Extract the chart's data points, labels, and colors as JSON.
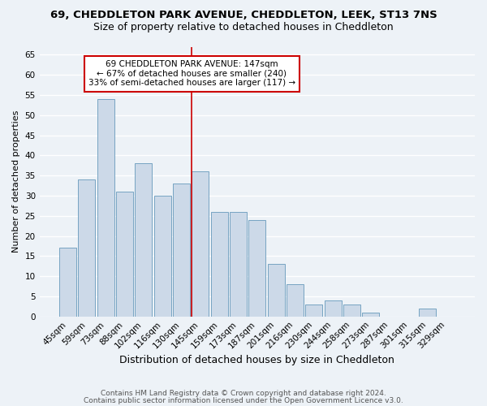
{
  "title1": "69, CHEDDLETON PARK AVENUE, CHEDDLETON, LEEK, ST13 7NS",
  "title2": "Size of property relative to detached houses in Cheddleton",
  "xlabel": "Distribution of detached houses by size in Cheddleton",
  "ylabel": "Number of detached properties",
  "categories": [
    "45sqm",
    "59sqm",
    "73sqm",
    "88sqm",
    "102sqm",
    "116sqm",
    "130sqm",
    "145sqm",
    "159sqm",
    "173sqm",
    "187sqm",
    "201sqm",
    "216sqm",
    "230sqm",
    "244sqm",
    "258sqm",
    "273sqm",
    "287sqm",
    "301sqm",
    "315sqm",
    "329sqm"
  ],
  "values": [
    17,
    34,
    54,
    31,
    38,
    30,
    33,
    36,
    26,
    26,
    24,
    13,
    8,
    3,
    4,
    3,
    1,
    0,
    0,
    2,
    0
  ],
  "bar_color": "#ccd9e8",
  "bar_edge_color": "#6699bb",
  "vline_index": 7,
  "vline_color": "#cc0000",
  "annotation_text": "69 CHEDDLETON PARK AVENUE: 147sqm\n← 67% of detached houses are smaller (240)\n33% of semi-detached houses are larger (117) →",
  "annotation_box_color": "white",
  "annotation_box_edge": "#cc0000",
  "footer1": "Contains HM Land Registry data © Crown copyright and database right 2024.",
  "footer2": "Contains public sector information licensed under the Open Government Licence v3.0.",
  "ylim": [
    0,
    67
  ],
  "yticks": [
    0,
    5,
    10,
    15,
    20,
    25,
    30,
    35,
    40,
    45,
    50,
    55,
    60,
    65
  ],
  "bg_color": "#edf2f7",
  "grid_color": "#ffffff",
  "title1_fontsize": 9.5,
  "title2_fontsize": 9,
  "xlabel_fontsize": 9,
  "ylabel_fontsize": 8,
  "tick_fontsize": 7.5,
  "annotation_fontsize": 7.5,
  "footer_fontsize": 6.5
}
